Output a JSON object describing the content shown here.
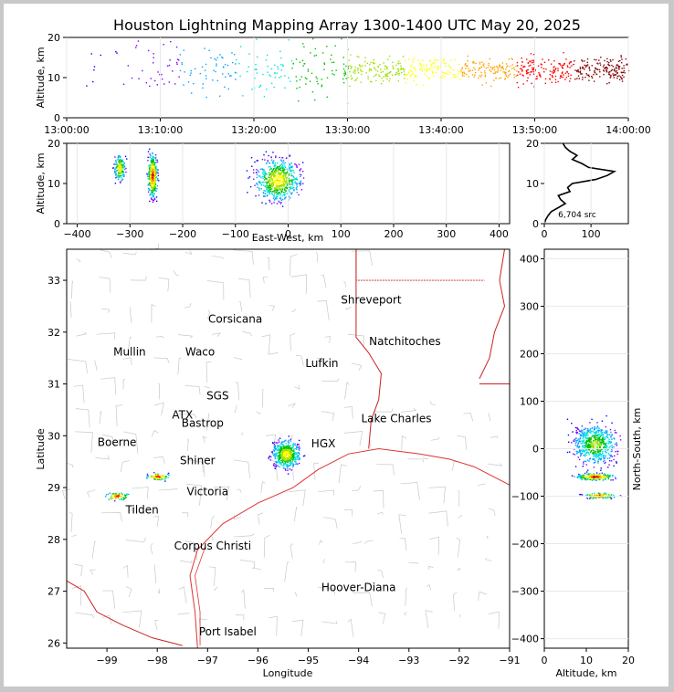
{
  "chart_data": {
    "type": "scatter",
    "title": "Houston Lightning Mapping Array 1300-1400 UTC May 20, 2025",
    "panels": {
      "time_altitude": {
        "ylabel": "Altitude, km",
        "xticks": [
          "13:00:00",
          "13:10:00",
          "13:20:00",
          "13:30:00",
          "13:40:00",
          "13:50:00",
          "14:00:00"
        ],
        "yticks": [
          0,
          10,
          20
        ],
        "xlim": [
          "13:00:00",
          "14:00:00"
        ],
        "ylim": [
          0,
          20
        ]
      },
      "ew_altitude": {
        "xlabel": "East-West, km",
        "ylabel": "Altitude, km",
        "xticks": [
          -400,
          -300,
          -200,
          -100,
          0,
          100,
          200,
          300,
          400
        ],
        "yticks": [
          0,
          10,
          20
        ],
        "xlim": [
          -420,
          420
        ],
        "ylim": [
          0,
          20
        ]
      },
      "histogram": {
        "xticks": [
          0,
          100
        ],
        "yticks": [
          0,
          10,
          20
        ],
        "xlim": [
          0,
          180
        ],
        "ylim": [
          0,
          20
        ],
        "annotation": "6,704 src",
        "profile": [
          [
            0,
            0
          ],
          [
            3,
            1
          ],
          [
            8,
            2
          ],
          [
            15,
            3
          ],
          [
            30,
            4
          ],
          [
            45,
            5
          ],
          [
            35,
            6
          ],
          [
            30,
            7
          ],
          [
            55,
            8
          ],
          [
            50,
            9
          ],
          [
            60,
            10
          ],
          [
            110,
            11
          ],
          [
            135,
            12
          ],
          [
            150,
            13
          ],
          [
            95,
            14
          ],
          [
            80,
            15
          ],
          [
            60,
            16
          ],
          [
            70,
            17
          ],
          [
            55,
            18
          ],
          [
            45,
            19
          ],
          [
            40,
            20
          ]
        ]
      },
      "map": {
        "xlabel": "Longitude",
        "ylabel": "Latitude",
        "xticks": [
          -99,
          -98,
          -97,
          -96,
          -95,
          -94,
          -93,
          -92,
          -91
        ],
        "yticks": [
          26,
          27,
          28,
          29,
          30,
          31,
          32,
          33
        ],
        "xlim": [
          -99.8,
          -91
        ],
        "ylim": [
          25.9,
          33.6
        ]
      },
      "ns_altitude": {
        "xlabel": "Altitude, km",
        "ylabel": "North-South, km",
        "xticks": [
          0,
          10,
          20
        ],
        "yticks": [
          -400,
          -300,
          -200,
          -100,
          0,
          100,
          200,
          300,
          400
        ],
        "xlim": [
          0,
          20
        ],
        "ylim": [
          -420,
          420
        ]
      }
    },
    "source_clusters": [
      {
        "lon": -95.45,
        "lat": 29.65,
        "ew_km": -20,
        "ns_km": 10,
        "alt_min": 4,
        "alt_max": 20
      },
      {
        "lon": -98.0,
        "lat": 29.22,
        "ew_km": -258,
        "ns_km": -58,
        "alt_min": 5,
        "alt_max": 20
      },
      {
        "lon": -98.8,
        "lat": 28.84,
        "ew_km": -320,
        "ns_km": -98,
        "alt_min": 8,
        "alt_max": 17
      }
    ],
    "cities": [
      {
        "name": "Shreveport",
        "lon": -93.75,
        "lat": 32.55,
        "color": "#000000"
      },
      {
        "name": "Corsicana",
        "lon": -96.45,
        "lat": 32.18,
        "color": "#000000"
      },
      {
        "name": "Natchitoches",
        "lon": -93.08,
        "lat": 31.75,
        "color": "#000000"
      },
      {
        "name": "Mullin",
        "lon": -98.55,
        "lat": 31.55,
        "color": "#f08040"
      },
      {
        "name": "Waco",
        "lon": -97.15,
        "lat": 31.55,
        "color": "#000000"
      },
      {
        "name": "Lufkin",
        "lon": -94.73,
        "lat": 31.33,
        "color": "#000000"
      },
      {
        "name": "Lake Charles",
        "lon": -93.25,
        "lat": 30.26,
        "color": "#000000"
      },
      {
        "name": "Bastrop",
        "lon": -97.1,
        "lat": 30.17,
        "color": "#000000"
      },
      {
        "name": "Boerne",
        "lon": -98.8,
        "lat": 29.8,
        "color": "#000000"
      },
      {
        "name": "Shiner",
        "lon": -97.2,
        "lat": 29.45,
        "color": "#000000"
      },
      {
        "name": "Victoria",
        "lon": -97.0,
        "lat": 28.85,
        "color": "#000000"
      },
      {
        "name": "Tilden",
        "lon": -98.3,
        "lat": 28.5,
        "color": "#000000"
      },
      {
        "name": "Corpus Christi",
        "lon": -96.9,
        "lat": 27.8,
        "color": "#000000"
      },
      {
        "name": "Hoover-Diana",
        "lon": -94.0,
        "lat": 27.0,
        "color": "#1010e0"
      },
      {
        "name": "Port Isabel",
        "lon": -96.6,
        "lat": 26.15,
        "color": "#000000"
      }
    ],
    "radars": [
      {
        "name": "SGS",
        "lon": -96.8,
        "lat": 30.7,
        "color": "#cc3333"
      },
      {
        "name": "ATX",
        "lon": -97.5,
        "lat": 30.33,
        "color": "#f08040"
      },
      {
        "name": "HGX",
        "lon": -94.7,
        "lat": 29.78,
        "color": "#f0a020"
      }
    ]
  }
}
